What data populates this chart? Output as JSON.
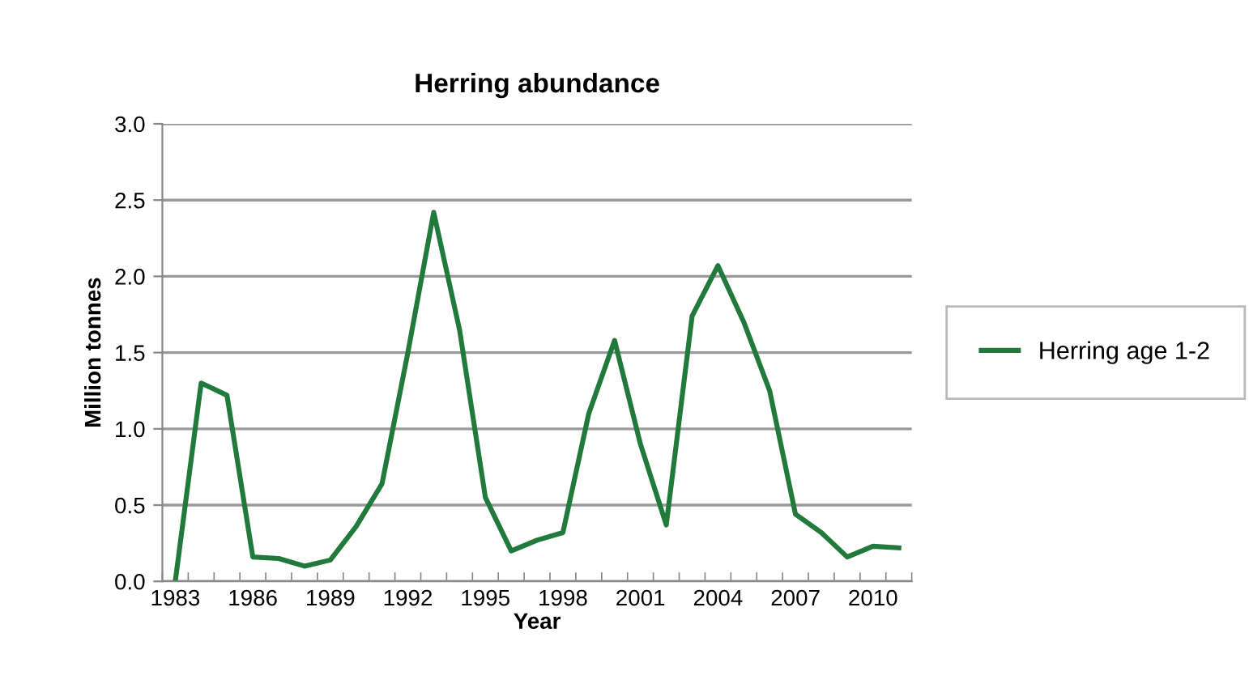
{
  "chart_data": {
    "type": "line",
    "title": "Herring abundance",
    "xlabel": "Year",
    "ylabel": "Million tonnes",
    "categories": [
      "1983",
      null,
      null,
      "1986",
      null,
      null,
      "1989",
      null,
      null,
      "1992",
      null,
      null,
      "1995",
      null,
      null,
      "1998",
      null,
      null,
      "2001",
      null,
      null,
      "2004",
      null,
      null,
      "2007",
      null,
      null,
      "2010",
      null
    ],
    "series": [
      {
        "name": "Herring age 1-2",
        "color": "#217a3c",
        "values": [
          0.0,
          1.3,
          1.22,
          0.16,
          0.15,
          0.1,
          0.14,
          0.36,
          0.64,
          1.5,
          2.42,
          1.65,
          0.55,
          0.2,
          0.27,
          0.32,
          1.1,
          1.58,
          0.9,
          0.37,
          1.74,
          2.07,
          1.7,
          1.25,
          0.44,
          0.32,
          0.16,
          0.23,
          0.22
        ]
      }
    ],
    "ylim": [
      0,
      3
    ],
    "yticks": [
      {
        "value": 0,
        "label": "0.0"
      },
      {
        "value": 0.5,
        "label": "0.5"
      },
      {
        "value": 1,
        "label": "1.0"
      },
      {
        "value": 1.5,
        "label": "1.5"
      },
      {
        "value": 2,
        "label": "2.0"
      },
      {
        "value": 2.5,
        "label": "2.5"
      },
      {
        "value": 3,
        "label": "3.0"
      }
    ],
    "grid": "y",
    "legend": "right",
    "marker": "none",
    "line_style": "solid"
  }
}
